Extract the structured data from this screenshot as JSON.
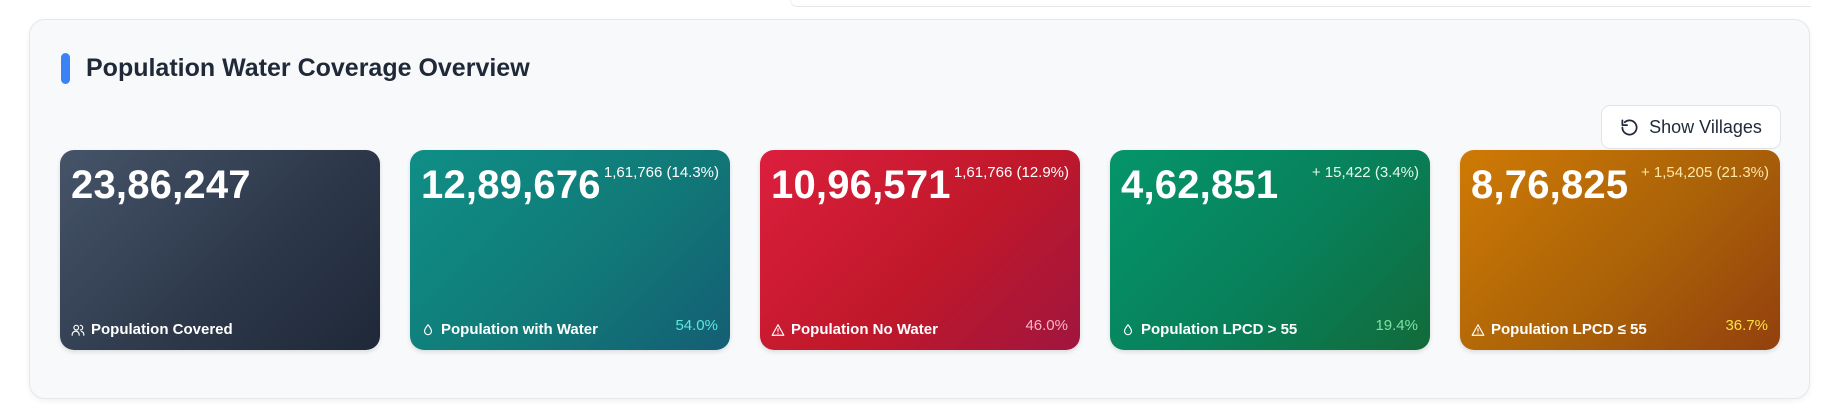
{
  "panel": {
    "title": "Population Water Coverage Overview",
    "accent_color": "#3b82f6"
  },
  "toolbar": {
    "show_villages_label": "Show Villages",
    "show_villages_icon": "refresh-icon"
  },
  "cards": [
    {
      "value": "23,86,247",
      "delta": "",
      "label": "Population Covered",
      "icon": "users-icon",
      "percent": ""
    },
    {
      "value": "12,89,676",
      "delta": "1,61,766 (14.3%)",
      "label": "Population with Water",
      "icon": "droplet-icon",
      "percent": "54.0%"
    },
    {
      "value": "10,96,571",
      "delta": "1,61,766 (12.9%)",
      "label": "Population No Water",
      "icon": "alert-triangle-icon",
      "percent": "46.0%"
    },
    {
      "value": "4,62,851",
      "delta": "+ 15,422 (3.4%)",
      "label": "Population LPCD > 55",
      "icon": "droplet-icon",
      "percent": "19.4%"
    },
    {
      "value": "8,76,825",
      "delta": "+ 1,54,205 (21.3%)",
      "label": "Population LPCD ≤ 55",
      "icon": "alert-triangle-icon",
      "percent": "36.7%"
    }
  ]
}
